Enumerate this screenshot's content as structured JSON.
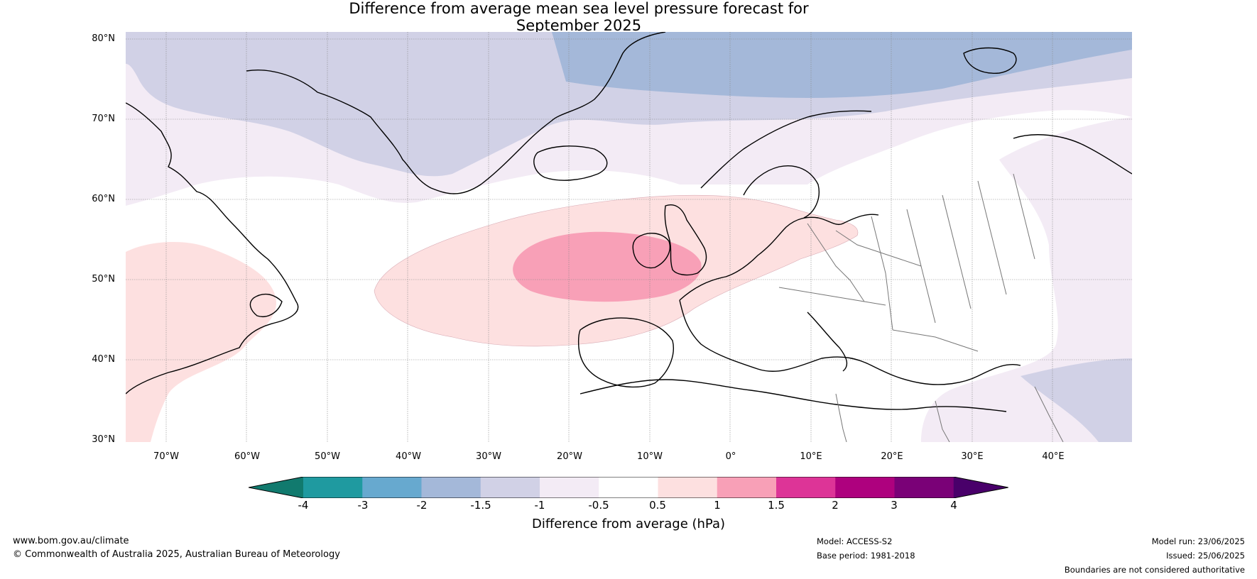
{
  "title_line1": "Difference from average mean sea level pressure forecast for",
  "title_line2": "September 2025",
  "lat_labels": [
    "80°N",
    "70°N",
    "60°N",
    "50°N",
    "40°N",
    "30°N"
  ],
  "lon_labels": [
    "70°W",
    "60°W",
    "50°W",
    "40°W",
    "30°W",
    "20°W",
    "10°W",
    "0°",
    "10°E",
    "20°E",
    "30°E",
    "40°E"
  ],
  "colorbar": {
    "ticks": [
      "-4",
      "-3",
      "-2",
      "-1.5",
      "-1",
      "-0.5",
      "0.5",
      "1",
      "1.5",
      "2",
      "3",
      "4"
    ],
    "colors": [
      "#117a6e",
      "#1f9aa0",
      "#67a9cf",
      "#a4b8d9",
      "#d1d1e6",
      "#f3ebf5",
      "#ffffff",
      "#fde0e0",
      "#f8a0b7",
      "#dd3497",
      "#ae017e",
      "#7a0177",
      "#49006a"
    ],
    "label": "Difference from average (hPa)"
  },
  "footer": {
    "website": "www.bom.gov.au/climate",
    "copyright": "© Commonwealth of Australia 2025, Australian Bureau of Meteorology",
    "model": "Model: ACCESS-S2",
    "base_period": "Base period: 1981-2018",
    "model_run": "Model run: 23/06/2025",
    "issued": "Issued: 25/06/2025",
    "disclaimer": "Boundaries are not considered authoritative"
  }
}
